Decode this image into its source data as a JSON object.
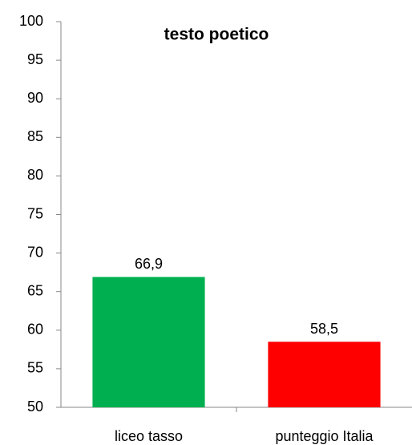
{
  "chart_data": {
    "type": "bar",
    "title": "testo poetico",
    "categories": [
      "liceo tasso",
      "punteggio Italia"
    ],
    "values": [
      66.9,
      58.5
    ],
    "value_labels": [
      "66,9",
      "58,5"
    ],
    "colors": [
      "#00b050",
      "#ff0000"
    ],
    "ylim": [
      50,
      100
    ],
    "yticks": [
      50,
      55,
      60,
      65,
      70,
      75,
      80,
      85,
      90,
      95,
      100
    ],
    "grid": false
  }
}
